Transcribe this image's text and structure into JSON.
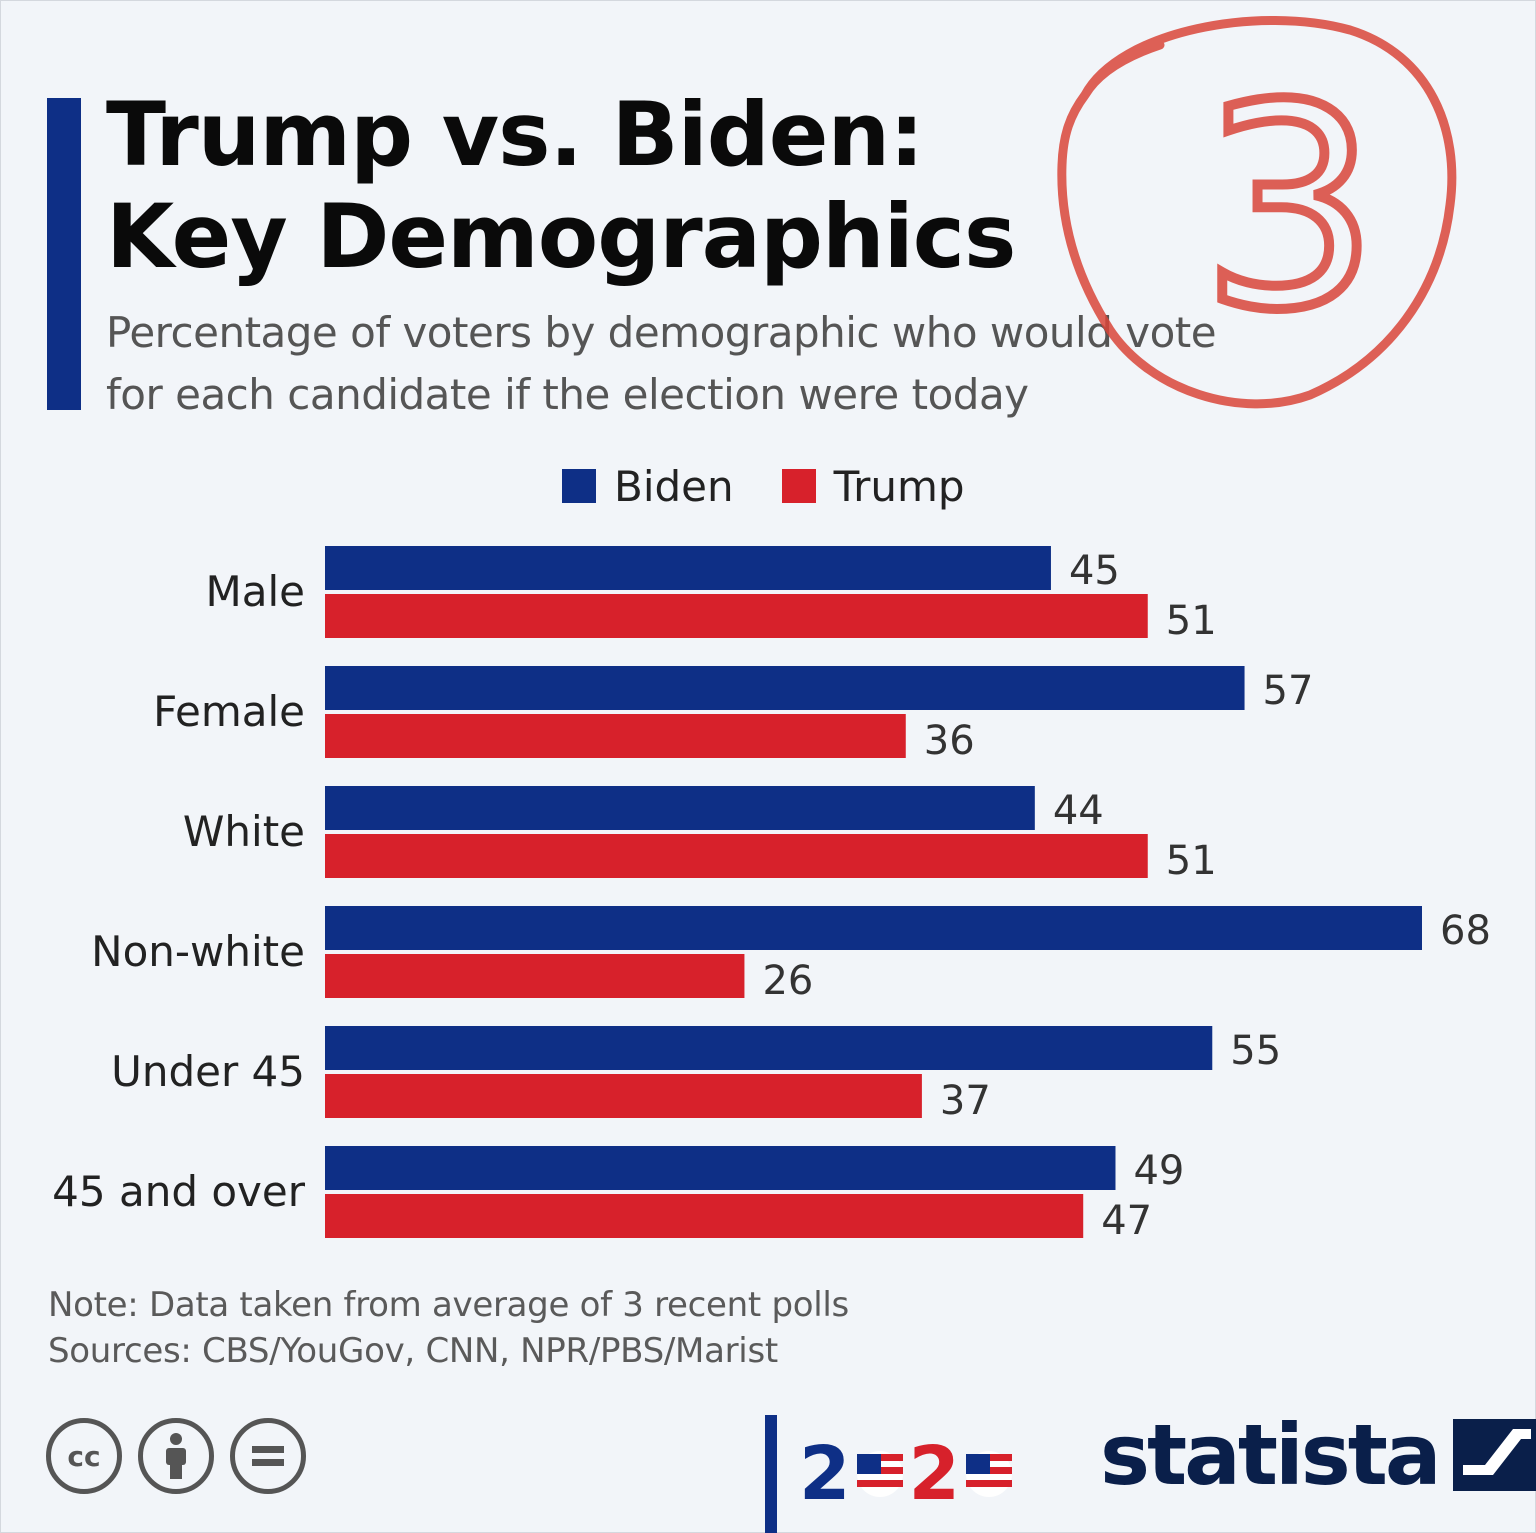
{
  "header": {
    "title_line1": "Trump vs. Biden:",
    "title_line2": "Key Demographics",
    "subtitle_line1": "Percentage of voters by demographic who would vote",
    "subtitle_line2": "for each candidate if the election were today"
  },
  "annotation": {
    "label": "3"
  },
  "colors": {
    "biden": "#0e2f86",
    "trump": "#d7212b",
    "accent": "#0e2f86",
    "annotation": "#d9453a"
  },
  "chart_data": {
    "type": "bar",
    "orientation": "horizontal",
    "title": "Trump vs. Biden: Key Demographics",
    "categories": [
      "Male",
      "Female",
      "White",
      "Non-white",
      "Under 45",
      "45 and over"
    ],
    "series": [
      {
        "name": "Biden",
        "values": [
          45,
          57,
          44,
          68,
          55,
          49
        ]
      },
      {
        "name": "Trump",
        "values": [
          51,
          36,
          51,
          26,
          37,
          47
        ]
      }
    ],
    "legend_position": "top",
    "xlim": [
      0,
      68
    ],
    "grid": false
  },
  "footer": {
    "note": "Note: Data taken from average of 3 recent polls",
    "sources": "Sources: CBS/YouGov, CNN, NPR/PBS/Marist",
    "year_digit_a": "2",
    "year_digit_b": "2",
    "brand": "statista",
    "cc_label": "cc"
  },
  "icons": [
    "cc-icon",
    "attribution-icon",
    "no-derivatives-icon",
    "flag-icon",
    "statista-logo-icon"
  ]
}
